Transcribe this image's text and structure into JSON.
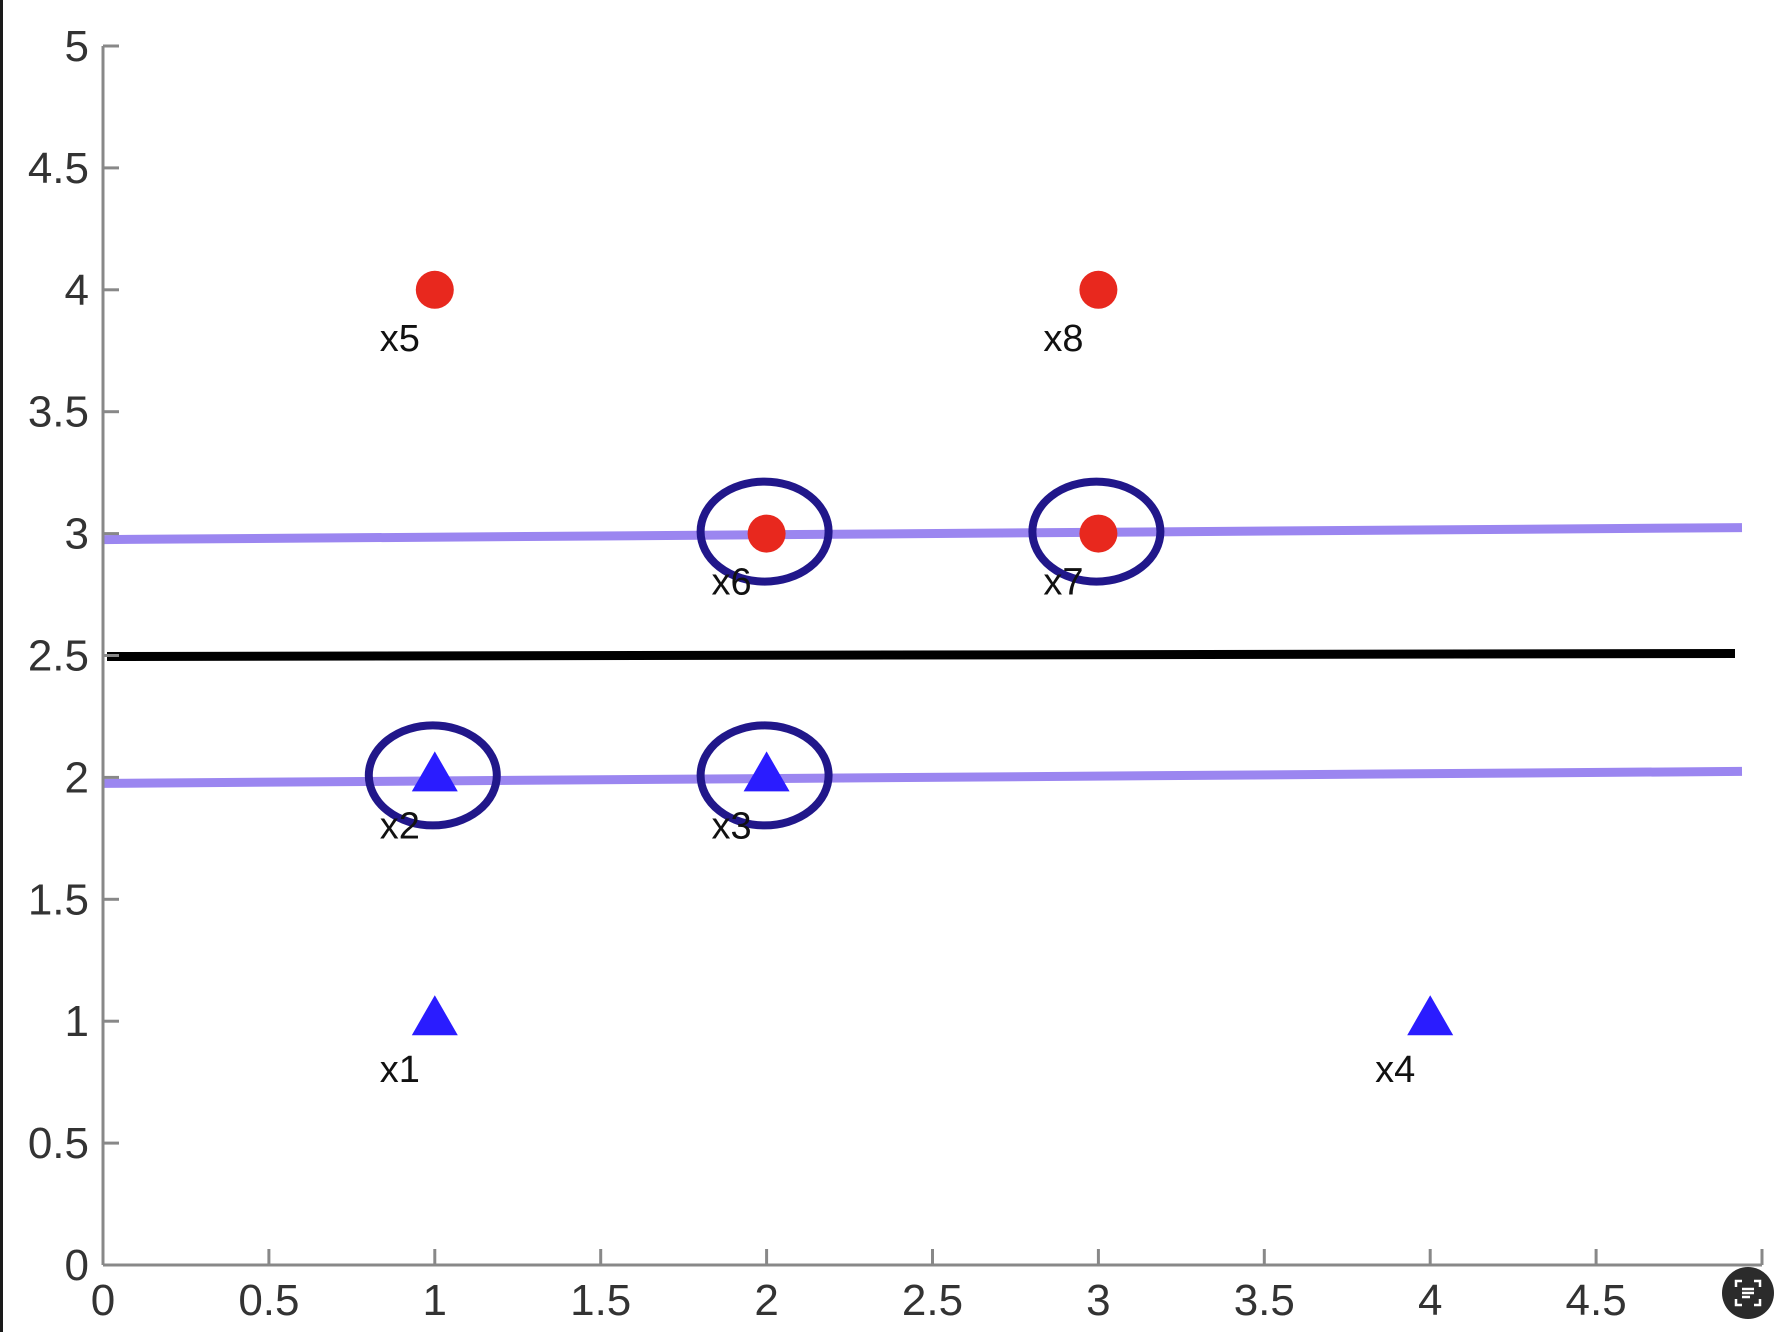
{
  "chart_data": {
    "type": "scatter",
    "xlim": [
      0,
      5
    ],
    "ylim": [
      0,
      5
    ],
    "x_ticks": [
      "0",
      "0.5",
      "1",
      "1.5",
      "2",
      "2.5",
      "3",
      "3.5",
      "4",
      "4.5"
    ],
    "y_ticks": [
      "0",
      "0.5",
      "1",
      "1.5",
      "2",
      "2.5",
      "3",
      "3.5",
      "4",
      "4.5",
      "5"
    ],
    "grid": false,
    "points": [
      {
        "label": "x1",
        "x": 1,
        "y": 1,
        "marker": "triangle",
        "color": "#2a1cff",
        "circled": false
      },
      {
        "label": "x2",
        "x": 1,
        "y": 2,
        "marker": "triangle",
        "color": "#2a1cff",
        "circled": true
      },
      {
        "label": "x3",
        "x": 2,
        "y": 2,
        "marker": "triangle",
        "color": "#2a1cff",
        "circled": true
      },
      {
        "label": "x4",
        "x": 4,
        "y": 1,
        "marker": "triangle",
        "color": "#2a1cff",
        "circled": false
      },
      {
        "label": "x5",
        "x": 1,
        "y": 4,
        "marker": "circle",
        "color": "#e8281e",
        "circled": false
      },
      {
        "label": "x6",
        "x": 2,
        "y": 3,
        "marker": "circle",
        "color": "#e8281e",
        "circled": true
      },
      {
        "label": "x7",
        "x": 3,
        "y": 3,
        "marker": "circle",
        "color": "#e8281e",
        "circled": true
      },
      {
        "label": "x8",
        "x": 3,
        "y": 4,
        "marker": "circle",
        "color": "#e8281e",
        "circled": false
      }
    ],
    "lines": [
      {
        "kind": "decision-boundary",
        "y": 2.5,
        "color": "#000000"
      },
      {
        "kind": "margin",
        "y": 3,
        "color": "#9b86f0"
      },
      {
        "kind": "margin",
        "y": 2,
        "color": "#9b86f0"
      }
    ],
    "circle_color": "#21178a"
  },
  "ui": {
    "corner_button_icon": "text-recognition-icon"
  }
}
